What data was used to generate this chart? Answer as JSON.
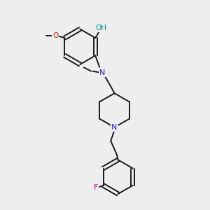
{
  "background_color": "#eeeeee",
  "bond_color": "#1a1a1a",
  "N_color": "#2222cc",
  "O_color": "#cc2200",
  "F_color": "#cc00aa",
  "OH_color": "#008888",
  "line_width": 1.4,
  "figsize": [
    3.0,
    3.0
  ],
  "dpi": 100,
  "xlim": [
    0,
    10
  ],
  "ylim": [
    0,
    10
  ]
}
